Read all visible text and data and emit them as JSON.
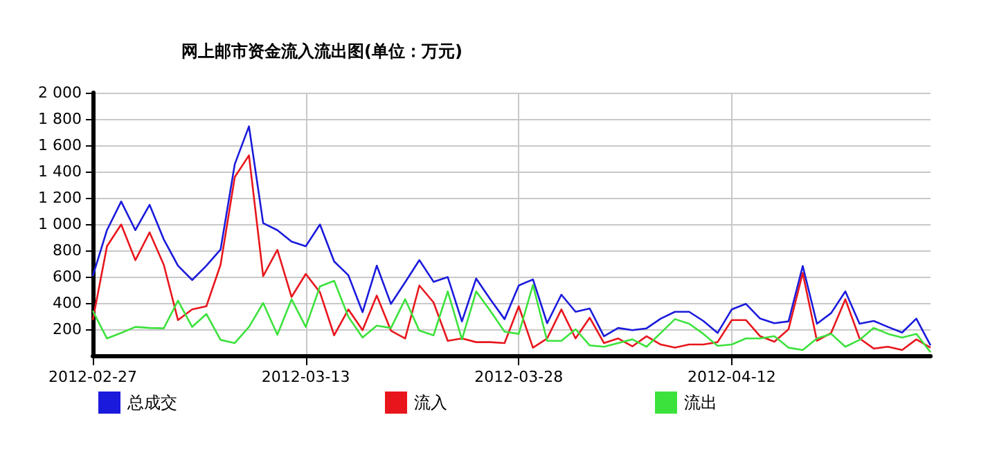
{
  "chart_data": {
    "type": "line",
    "title": "网上邮市资金流入流出图(单位：万元)",
    "x": [
      "2012-02-27",
      "2012-02-28",
      "2012-02-29",
      "2012-03-01",
      "2012-03-02",
      "2012-03-03",
      "2012-03-04",
      "2012-03-05",
      "2012-03-06",
      "2012-03-07",
      "2012-03-08",
      "2012-03-09",
      "2012-03-10",
      "2012-03-11",
      "2012-03-12",
      "2012-03-13",
      "2012-03-14",
      "2012-03-15",
      "2012-03-16",
      "2012-03-17",
      "2012-03-18",
      "2012-03-19",
      "2012-03-20",
      "2012-03-21",
      "2012-03-22",
      "2012-03-23",
      "2012-03-24",
      "2012-03-25",
      "2012-03-26",
      "2012-03-27",
      "2012-03-28",
      "2012-03-29",
      "2012-03-30",
      "2012-03-31",
      "2012-04-01",
      "2012-04-02",
      "2012-04-03",
      "2012-04-04",
      "2012-04-05",
      "2012-04-06",
      "2012-04-07",
      "2012-04-08",
      "2012-04-09",
      "2012-04-10",
      "2012-04-11",
      "2012-04-12",
      "2012-04-13",
      "2012-04-14",
      "2012-04-15",
      "2012-04-16",
      "2012-04-17",
      "2012-04-18",
      "2012-04-19",
      "2012-04-20",
      "2012-04-21",
      "2012-04-22",
      "2012-04-23",
      "2012-04-24",
      "2012-04-25",
      "2012-04-26"
    ],
    "series": [
      {
        "name": "总成交",
        "color": "#1a1adc",
        "values": [
          604,
          954,
          1172,
          954,
          1147,
          884,
          684,
          575,
          684,
          807,
          1456,
          1744,
          1007,
          954,
          867,
          832,
          997,
          716,
          611,
          330,
          684,
          393,
          558,
          726,
          561,
          597,
          260,
          586,
          428,
          277,
          533,
          579,
          246,
          463,
          333,
          358,
          147,
          210,
          193,
          207,
          281,
          333,
          333,
          263,
          172,
          351,
          393,
          281,
          246,
          260,
          681,
          242,
          323,
          488,
          242,
          263,
          218,
          175,
          281,
          77
        ]
      },
      {
        "name": "流入",
        "color": "#e8161c",
        "values": [
          270,
          832,
          997,
          726,
          937,
          691,
          270,
          351,
          375,
          691,
          1358,
          1523,
          604,
          804,
          446,
          621,
          481,
          154,
          351,
          193,
          456,
          189,
          130,
          533,
          404,
          112,
          130,
          102,
          102,
          95,
          375,
          60,
          130,
          351,
          130,
          288,
          95,
          130,
          70,
          147,
          84,
          60,
          84,
          84,
          102,
          270,
          270,
          147,
          105,
          200,
          628,
          112,
          172,
          428,
          130,
          53,
          67,
          42,
          123,
          60
        ]
      },
      {
        "name": "流出",
        "color": "#3ce23c",
        "values": [
          340,
          130,
          172,
          218,
          210,
          207,
          418,
          218,
          316,
          119,
          95,
          218,
          400,
          158,
          428,
          218,
          526,
          568,
          295,
          137,
          228,
          210,
          428,
          189,
          154,
          488,
          123,
          488,
          340,
          182,
          165,
          537,
          112,
          112,
          200,
          77,
          67,
          95,
          123,
          67,
          172,
          277,
          242,
          165,
          74,
          84,
          130,
          130,
          147,
          60,
          42,
          130,
          165,
          67,
          119,
          210,
          165,
          137,
          165,
          25
        ]
      }
    ],
    "xlim": [
      "2012-02-27",
      "2012-04-26"
    ],
    "xticks": [
      "2012-02-27",
      "2012-03-13",
      "2012-03-28",
      "2012-04-12"
    ],
    "ylim": [
      0,
      2000
    ],
    "yticks": [
      {
        "value": 200,
        "label": "200"
      },
      {
        "value": 400,
        "label": "400"
      },
      {
        "value": 600,
        "label": "600"
      },
      {
        "value": 800,
        "label": "800"
      },
      {
        "value": 1000,
        "label": "1 000"
      },
      {
        "value": 1200,
        "label": "1 200"
      },
      {
        "value": 1400,
        "label": "1 400"
      },
      {
        "value": 1600,
        "label": "1 600"
      },
      {
        "value": 1800,
        "label": "1 800"
      },
      {
        "value": 2000,
        "label": "2 000"
      }
    ],
    "grid": true,
    "legend": "bottom left",
    "marker": "none",
    "line_style": "solid"
  }
}
